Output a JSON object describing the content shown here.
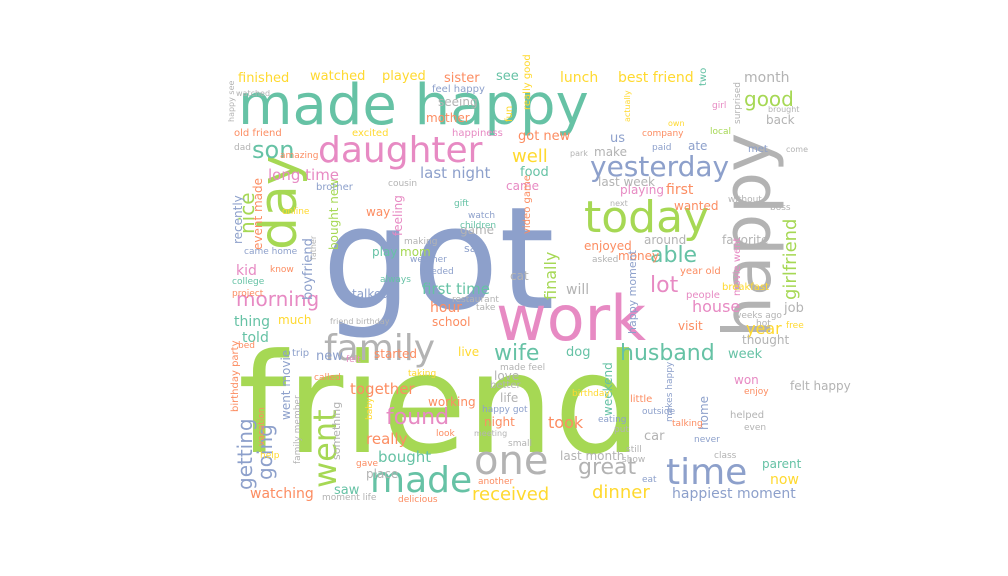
{
  "words": [
    {
      "text": "friend",
      "color": "#a6d854"
    },
    {
      "text": "got",
      "color": "#8da0cb"
    },
    {
      "text": "made happy",
      "color": "#66c2a5"
    },
    {
      "text": "happy",
      "color": "#b3b3b3"
    },
    {
      "text": "work",
      "color": "#e78ac3"
    },
    {
      "text": "day",
      "color": "#a6d854"
    },
    {
      "text": "daughter",
      "color": "#e78ac3"
    },
    {
      "text": "today",
      "color": "#a6d854"
    },
    {
      "text": "family",
      "color": "#b3b3b3"
    },
    {
      "text": "one",
      "color": "#b3b3b3"
    },
    {
      "text": "made",
      "color": "#66c2a5"
    },
    {
      "text": "time",
      "color": "#8da0cb"
    },
    {
      "text": "went",
      "color": "#a6d854"
    },
    {
      "text": "yesterday",
      "color": "#8da0cb"
    },
    {
      "text": "son",
      "color": "#66c2a5"
    },
    {
      "text": "wife",
      "color": "#66c2a5"
    },
    {
      "text": "husband",
      "color": "#66c2a5"
    },
    {
      "text": "found",
      "color": "#e78ac3"
    },
    {
      "text": "received",
      "color": "#ffd92f"
    },
    {
      "text": "dinner",
      "color": "#ffd92f"
    },
    {
      "text": "great",
      "color": "#b3b3b3"
    },
    {
      "text": "morning",
      "color": "#e78ac3"
    },
    {
      "text": "able",
      "color": "#66c2a5"
    },
    {
      "text": "lot",
      "color": "#e78ac3"
    },
    {
      "text": "good",
      "color": "#a6d854"
    },
    {
      "text": "girlfriend",
      "color": "#a6d854"
    },
    {
      "text": "well",
      "color": "#ffd92f"
    },
    {
      "text": "nice",
      "color": "#a6d854"
    },
    {
      "text": "getting",
      "color": "#8da0cb"
    },
    {
      "text": "going",
      "color": "#8da0cb"
    },
    {
      "text": "happiest moment",
      "color": "#8da0cb"
    },
    {
      "text": "last night",
      "color": "#8da0cb"
    },
    {
      "text": "long time",
      "color": "#e78ac3"
    },
    {
      "text": "first time",
      "color": "#66c2a5"
    },
    {
      "text": "bought",
      "color": "#66c2a5"
    },
    {
      "text": "finally",
      "color": "#a6d854"
    },
    {
      "text": "year",
      "color": "#ffd92f"
    },
    {
      "text": "house",
      "color": "#e78ac3"
    },
    {
      "text": "took",
      "color": "#fc8d62"
    },
    {
      "text": "really",
      "color": "#fc8d62"
    },
    {
      "text": "together",
      "color": "#fc8d62"
    },
    {
      "text": "watching",
      "color": "#fc8d62"
    },
    {
      "text": "best friend",
      "color": "#ffd92f"
    },
    {
      "text": "lunch",
      "color": "#ffd92f"
    },
    {
      "text": "month",
      "color": "#b3b3b3"
    },
    {
      "text": "first",
      "color": "#fc8d62"
    },
    {
      "text": "will",
      "color": "#b3b3b3"
    },
    {
      "text": "hour",
      "color": "#fc8d62"
    },
    {
      "text": "new",
      "color": "#8da0cb"
    },
    {
      "text": "dog",
      "color": "#66c2a5"
    },
    {
      "text": "kid",
      "color": "#e78ac3"
    },
    {
      "text": "thing",
      "color": "#66c2a5"
    },
    {
      "text": "told",
      "color": "#66c2a5"
    },
    {
      "text": "now",
      "color": "#ffd92f"
    },
    {
      "text": "saw",
      "color": "#66c2a5"
    },
    {
      "text": "week",
      "color": "#66c2a5"
    },
    {
      "text": "job",
      "color": "#b3b3b3"
    },
    {
      "text": "watched",
      "color": "#ffd92f"
    },
    {
      "text": "finished",
      "color": "#ffd92f"
    },
    {
      "text": "played",
      "color": "#ffd92f"
    },
    {
      "text": "sister",
      "color": "#fc8d62"
    },
    {
      "text": "see",
      "color": "#66c2a5"
    },
    {
      "text": "got new",
      "color": "#fc8d62"
    },
    {
      "text": "us",
      "color": "#8da0cb"
    },
    {
      "text": "mother",
      "color": "#fc8d62"
    },
    {
      "text": "seeing",
      "color": "#b3b3b3"
    },
    {
      "text": "make",
      "color": "#b3b3b3"
    },
    {
      "text": "ate",
      "color": "#8da0cb"
    },
    {
      "text": "back",
      "color": "#b3b3b3"
    },
    {
      "text": "came",
      "color": "#e78ac3"
    },
    {
      "text": "food",
      "color": "#66c2a5"
    },
    {
      "text": "last week",
      "color": "#b3b3b3"
    },
    {
      "text": "playing",
      "color": "#e78ac3"
    },
    {
      "text": "wanted",
      "color": "#fc8d62"
    },
    {
      "text": "boyfriend",
      "color": "#8da0cb"
    },
    {
      "text": "bought new",
      "color": "#a6d854"
    },
    {
      "text": "game",
      "color": "#b3b3b3"
    },
    {
      "text": "play",
      "color": "#66c2a5"
    },
    {
      "text": "mom",
      "color": "#a6d854"
    },
    {
      "text": "enjoyed",
      "color": "#fc8d62"
    },
    {
      "text": "money",
      "color": "#fc8d62"
    },
    {
      "text": "around",
      "color": "#b3b3b3"
    },
    {
      "text": "favorite",
      "color": "#b3b3b3"
    },
    {
      "text": "event made",
      "color": "#fc8d62"
    },
    {
      "text": "recently",
      "color": "#8da0cb"
    },
    {
      "text": "visit",
      "color": "#fc8d62"
    },
    {
      "text": "thought",
      "color": "#b3b3b3"
    },
    {
      "text": "talked",
      "color": "#8da0cb"
    },
    {
      "text": "much",
      "color": "#ffd92f"
    },
    {
      "text": "school",
      "color": "#fc8d62"
    },
    {
      "text": "started",
      "color": "#fc8d62"
    },
    {
      "text": "life",
      "color": "#b3b3b3"
    },
    {
      "text": "love",
      "color": "#b3b3b3"
    },
    {
      "text": "night",
      "color": "#fc8d62"
    },
    {
      "text": "car",
      "color": "#b3b3b3"
    },
    {
      "text": "won",
      "color": "#e78ac3"
    },
    {
      "text": "home",
      "color": "#8da0cb"
    },
    {
      "text": "felt happy",
      "color": "#b3b3b3"
    },
    {
      "text": "parent",
      "color": "#66c2a5"
    },
    {
      "text": "last month",
      "color": "#b3b3b3"
    },
    {
      "text": "went movie",
      "color": "#8da0cb"
    },
    {
      "text": "something",
      "color": "#b3b3b3"
    },
    {
      "text": "working",
      "color": "#fc8d62"
    },
    {
      "text": "weekend",
      "color": "#66c2a5"
    },
    {
      "text": "feeling",
      "color": "#e78ac3"
    },
    {
      "text": "said",
      "color": "#8da0cb"
    },
    {
      "text": "cat",
      "color": "#b3b3b3"
    },
    {
      "text": "way",
      "color": "#fc8d62"
    },
    {
      "text": "live",
      "color": "#ffd92f"
    },
    {
      "text": "place",
      "color": "#b3b3b3"
    },
    {
      "text": "helped",
      "color": "#b3b3b3"
    },
    {
      "text": "happy moment",
      "color": "#8da0cb"
    },
    {
      "text": "movie went",
      "color": "#e78ac3"
    },
    {
      "text": "video game",
      "color": "#fc8d62"
    },
    {
      "text": "people",
      "color": "#e78ac3"
    },
    {
      "text": "year old",
      "color": "#fc8d62"
    },
    {
      "text": "breakfast",
      "color": "#ffd92f"
    },
    {
      "text": "happiness",
      "color": "#e78ac3"
    },
    {
      "text": "fun",
      "color": "#ffd92f"
    },
    {
      "text": "feel happy",
      "color": "#8da0cb"
    },
    {
      "text": "really good",
      "color": "#ffd92f"
    },
    {
      "text": "excited",
      "color": "#ffd92f"
    },
    {
      "text": "company",
      "color": "#fc8d62"
    },
    {
      "text": "two",
      "color": "#66c2a5"
    },
    {
      "text": "girl",
      "color": "#e78ac3"
    },
    {
      "text": "surprised",
      "color": "#b3b3b3"
    },
    {
      "text": "brought",
      "color": "#b3b3b3"
    },
    {
      "text": "actually",
      "color": "#ffd92f"
    },
    {
      "text": "local",
      "color": "#a6d854"
    },
    {
      "text": "paid",
      "color": "#8da0cb"
    },
    {
      "text": "met",
      "color": "#8da0cb"
    },
    {
      "text": "come",
      "color": "#b3b3b3"
    },
    {
      "text": "own",
      "color": "#ffd92f"
    },
    {
      "text": "old friend",
      "color": "#fc8d62"
    },
    {
      "text": "dad",
      "color": "#b3b3b3"
    },
    {
      "text": "amazing",
      "color": "#fc8d62"
    },
    {
      "text": "brother",
      "color": "#8da0cb"
    },
    {
      "text": "cousin",
      "color": "#b3b3b3"
    },
    {
      "text": "park",
      "color": "#b3b3b3"
    },
    {
      "text": "gift",
      "color": "#66c2a5"
    },
    {
      "text": "watch",
      "color": "#8da0cb"
    },
    {
      "text": "children",
      "color": "#66c2a5"
    },
    {
      "text": "making",
      "color": "#b3b3b3"
    },
    {
      "text": "weather",
      "color": "#8da0cb"
    },
    {
      "text": "needed",
      "color": "#8da0cb"
    },
    {
      "text": "without",
      "color": "#b3b3b3"
    },
    {
      "text": "boss",
      "color": "#b3b3b3"
    },
    {
      "text": "next",
      "color": "#b3b3b3"
    },
    {
      "text": "online",
      "color": "#ffd92f"
    },
    {
      "text": "came home",
      "color": "#8da0cb"
    },
    {
      "text": "know",
      "color": "#fc8d62"
    },
    {
      "text": "father",
      "color": "#b3b3b3"
    },
    {
      "text": "college",
      "color": "#66c2a5"
    },
    {
      "text": "always",
      "color": "#66c2a5"
    },
    {
      "text": "restaurant",
      "color": "#b3b3b3"
    },
    {
      "text": "take",
      "color": "#b3b3b3"
    },
    {
      "text": "asked",
      "color": "#b3b3b3"
    },
    {
      "text": "project",
      "color": "#fc8d62"
    },
    {
      "text": "friend birthday",
      "color": "#b3b3b3"
    },
    {
      "text": "birthday party",
      "color": "#fc8d62"
    },
    {
      "text": "bed",
      "color": "#fc8d62"
    },
    {
      "text": "trip",
      "color": "#8da0cb"
    },
    {
      "text": "felt",
      "color": "#e78ac3"
    },
    {
      "text": "free",
      "color": "#ffd92f"
    },
    {
      "text": "weeks ago",
      "color": "#b3b3b3"
    },
    {
      "text": "hot",
      "color": "#b3b3b3"
    },
    {
      "text": "taking",
      "color": "#ffd92f"
    },
    {
      "text": "made feel",
      "color": "#b3b3b3"
    },
    {
      "text": "called",
      "color": "#fc8d62"
    },
    {
      "text": "baby",
      "color": "#ffd92f"
    },
    {
      "text": "family member",
      "color": "#b3b3b3"
    },
    {
      "text": "birthday",
      "color": "#ffd92f"
    },
    {
      "text": "better",
      "color": "#b3b3b3"
    },
    {
      "text": "happy got",
      "color": "#8da0cb"
    },
    {
      "text": "eating",
      "color": "#8da0cb"
    },
    {
      "text": "put",
      "color": "#b3b3b3"
    },
    {
      "text": "outside",
      "color": "#8da0cb"
    },
    {
      "text": "makes happy",
      "color": "#8da0cb"
    },
    {
      "text": "little",
      "color": "#fc8d62"
    },
    {
      "text": "talking",
      "color": "#fc8d62"
    },
    {
      "text": "never",
      "color": "#8da0cb"
    },
    {
      "text": "even",
      "color": "#b3b3b3"
    },
    {
      "text": "enjoy",
      "color": "#fc8d62"
    },
    {
      "text": "class",
      "color": "#b3b3b3"
    },
    {
      "text": "look",
      "color": "#fc8d62"
    },
    {
      "text": "small",
      "color": "#b3b3b3"
    },
    {
      "text": "meeting",
      "color": "#b3b3b3"
    },
    {
      "text": "still",
      "color": "#b3b3b3"
    },
    {
      "text": "show",
      "color": "#b3b3b3"
    },
    {
      "text": "eat",
      "color": "#8da0cb"
    },
    {
      "text": "help",
      "color": "#ffd92f"
    },
    {
      "text": "gave",
      "color": "#fc8d62"
    },
    {
      "text": "vacation",
      "color": "#fc8d62"
    },
    {
      "text": "another",
      "color": "#fc8d62"
    },
    {
      "text": "moment life",
      "color": "#b3b3b3"
    },
    {
      "text": "delicious",
      "color": "#fc8d62"
    },
    {
      "text": "happy see",
      "color": "#b3b3b3"
    },
    {
      "text": "watched",
      "color": "#b3b3b3"
    }
  ]
}
